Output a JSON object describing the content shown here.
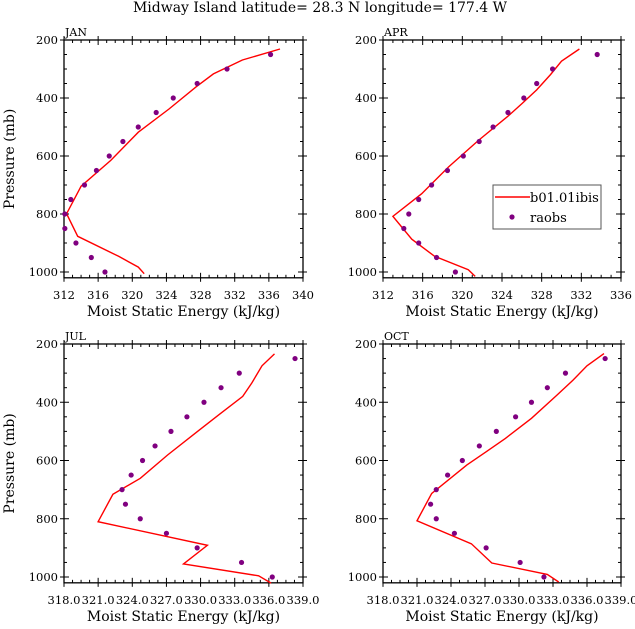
{
  "title": "Midway Island   latitude= 28.3 N longitude= 177.4 W",
  "chart_data": [
    {
      "type": "line",
      "panel_label": "JAN",
      "xlabel": "Moist Static Energy (kJ/kg)",
      "ylabel": "Pressure (mb)",
      "xlim": [
        312,
        340
      ],
      "ylim": [
        200,
        1020
      ],
      "y_reversed": true,
      "xticks": [
        312,
        316,
        320,
        324,
        328,
        332,
        336,
        340
      ],
      "xtick_labels": [
        "312",
        "316",
        "320",
        "324",
        "328",
        "332",
        "336",
        "340"
      ],
      "yticks": [
        200,
        400,
        600,
        800,
        1000
      ],
      "ytick_labels": [
        "200",
        "400",
        "600",
        "800",
        "1000"
      ],
      "series": [
        {
          "name": "b01.01ibis",
          "style": "line",
          "color": "#ff0000",
          "x": [
            337.3,
            332.9,
            329.5,
            327.5,
            324.3,
            320.7,
            317.5,
            314.0,
            312.3,
            313.6,
            318.4,
            320.7,
            321.4
          ],
          "y": [
            231,
            269,
            317,
            361,
            438,
            518,
            615,
            704,
            799,
            877,
            946,
            983,
            1006
          ]
        },
        {
          "name": "raobs",
          "style": "marker",
          "color": "#800080",
          "x": [
            336.2,
            331.1,
            327.6,
            324.8,
            322.8,
            320.7,
            318.9,
            317.3,
            315.8,
            314.4,
            312.8,
            312.1,
            312.1,
            313.4,
            315.2,
            316.8
          ],
          "y": [
            250,
            300,
            350,
            400,
            450,
            500,
            550,
            600,
            650,
            700,
            750,
            800,
            850,
            900,
            950,
            1000
          ]
        }
      ]
    },
    {
      "type": "line",
      "panel_label": "APR",
      "xlabel": "Moist Static Energy (kJ/kg)",
      "ylabel": "",
      "xlim": [
        312,
        336
      ],
      "ylim": [
        200,
        1020
      ],
      "y_reversed": true,
      "xticks": [
        312,
        316,
        320,
        324,
        328,
        332,
        336
      ],
      "xtick_labels": [
        "312",
        "316",
        "320",
        "324",
        "328",
        "332",
        "336"
      ],
      "yticks": [
        200,
        400,
        600,
        800,
        1000
      ],
      "ytick_labels": [
        "200",
        "400",
        "600",
        "800",
        "1000"
      ],
      "legend": {
        "placement": "right-middle",
        "entries": [
          "b01.01ibis",
          "raobs"
        ]
      },
      "series": [
        {
          "name": "b01.01ibis",
          "style": "line",
          "color": "#ff0000",
          "x": [
            331.8,
            330.0,
            328.9,
            327.5,
            326.0,
            324.7,
            321.6,
            318.6,
            315.9,
            313.0,
            314.9,
            317.2,
            320.6,
            321.3
          ],
          "y": [
            231,
            273,
            319,
            372,
            420,
            460,
            547,
            638,
            730,
            808,
            887,
            946,
            992,
            1015
          ]
        },
        {
          "name": "raobs",
          "style": "marker",
          "color": "#800080",
          "x": [
            333.6,
            329.1,
            327.5,
            326.2,
            324.6,
            323.1,
            321.7,
            320.1,
            318.5,
            316.9,
            315.6,
            314.6,
            314.1,
            315.6,
            317.4,
            319.3
          ],
          "y": [
            250,
            300,
            350,
            400,
            450,
            500,
            550,
            600,
            650,
            700,
            750,
            800,
            850,
            900,
            950,
            1000
          ]
        }
      ]
    },
    {
      "type": "line",
      "panel_label": "JUL",
      "xlabel": "Moist Static Energy (kJ/kg)",
      "ylabel": "Pressure (mb)",
      "xlim": [
        318,
        339
      ],
      "ylim": [
        200,
        1020
      ],
      "y_reversed": true,
      "xticks": [
        318,
        321,
        324,
        327,
        330,
        333,
        336,
        339
      ],
      "xtick_labels": [
        "318.0",
        "321.0",
        "324.0",
        "327.0",
        "330.0",
        "333.0",
        "336.0",
        "339.0"
      ],
      "yticks": [
        200,
        400,
        600,
        800,
        1000
      ],
      "ytick_labels": [
        "200",
        "400",
        "600",
        "800",
        "1000"
      ],
      "series": [
        {
          "name": "b01.01ibis",
          "style": "line",
          "color": "#ff0000",
          "x": [
            336.5,
            335.4,
            334.5,
            333.7,
            331.6,
            329.7,
            327.1,
            324.7,
            322.3,
            321.0,
            330.6,
            328.5,
            335.1,
            336.2
          ],
          "y": [
            234,
            275,
            334,
            380,
            443,
            501,
            581,
            661,
            716,
            810,
            891,
            955,
            996,
            1021
          ]
        },
        {
          "name": "raobs",
          "style": "marker",
          "color": "#800080",
          "x": [
            338.3,
            333.4,
            331.8,
            330.3,
            328.8,
            327.4,
            326.0,
            324.9,
            323.9,
            323.1,
            323.4,
            324.7,
            327.0,
            329.7,
            333.6,
            336.3
          ],
          "y": [
            250,
            300,
            350,
            400,
            450,
            500,
            550,
            600,
            650,
            700,
            750,
            800,
            850,
            900,
            950,
            1000
          ]
        }
      ]
    },
    {
      "type": "line",
      "panel_label": "OCT",
      "xlabel": "Moist Static Energy (kJ/kg)",
      "ylabel": "",
      "xlim": [
        318,
        339
      ],
      "ylim": [
        200,
        1020
      ],
      "y_reversed": true,
      "xticks": [
        318,
        321,
        324,
        327,
        330,
        333,
        336,
        339
      ],
      "xtick_labels": [
        "318.0",
        "321.0",
        "324.0",
        "327.0",
        "330.0",
        "333.0",
        "336.0",
        "339.0"
      ],
      "yticks": [
        200,
        400,
        600,
        800,
        1000
      ],
      "ytick_labels": [
        "200",
        "400",
        "600",
        "800",
        "1000"
      ],
      "series": [
        {
          "name": "b01.01ibis",
          "style": "line",
          "color": "#ff0000",
          "x": [
            337.5,
            336.0,
            334.8,
            333.3,
            331.1,
            328.8,
            327.1,
            325.4,
            322.3,
            321.0,
            325.8,
            327.6,
            332.5,
            333.5
          ],
          "y": [
            233,
            275,
            323,
            377,
            455,
            524,
            570,
            615,
            713,
            807,
            886,
            952,
            991,
            1017
          ]
        },
        {
          "name": "raobs",
          "style": "marker",
          "color": "#800080",
          "x": [
            337.6,
            334.1,
            332.5,
            331.1,
            329.7,
            328.0,
            326.5,
            325.0,
            323.7,
            322.7,
            322.2,
            322.7,
            324.3,
            327.1,
            330.1,
            332.2
          ],
          "y": [
            250,
            300,
            350,
            400,
            450,
            500,
            550,
            600,
            650,
            700,
            750,
            800,
            850,
            900,
            950,
            1000
          ]
        }
      ]
    }
  ]
}
